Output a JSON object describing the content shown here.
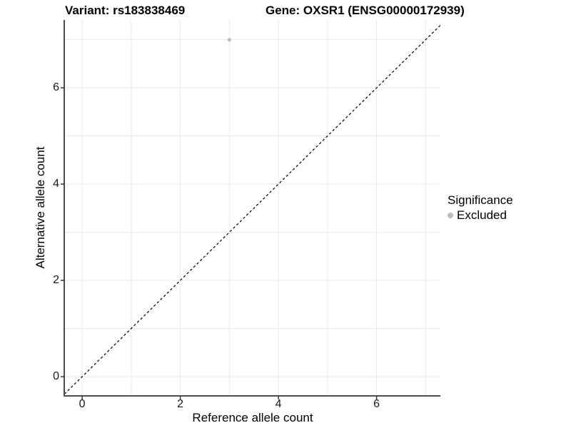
{
  "chart_data": {
    "type": "scatter",
    "title_left": "Variant: rs183838469",
    "title_right": "Gene: OXSR1 (ENSG00000172939)",
    "xlabel": "Reference allele count",
    "ylabel": "Alternative allele count",
    "xlim": [
      -0.365,
      7.3
    ],
    "ylim": [
      -0.4,
      7.41
    ],
    "x_ticks": [
      0,
      2,
      4,
      6
    ],
    "y_ticks": [
      0,
      2,
      4,
      6
    ],
    "grid_x": [
      0,
      1,
      2,
      3,
      4,
      5,
      6,
      7
    ],
    "grid_y": [
      0,
      1,
      2,
      3,
      4,
      5,
      6,
      7
    ],
    "grid": true,
    "series": [
      {
        "name": "Excluded",
        "color": "#bdbdbd",
        "points": [
          {
            "x": 3,
            "y": 7
          }
        ]
      }
    ],
    "reference_line": {
      "type": "identity",
      "slope": 1,
      "intercept": 0,
      "style": "dashed",
      "color": "#000000"
    },
    "legend": {
      "title": "Significance",
      "position": "right",
      "items": [
        {
          "label": "Excluded",
          "color": "#bdbdbd"
        }
      ]
    },
    "colors": {
      "grid": "#e9e9e9",
      "axis_line": "#4d4d4d",
      "tick_mark": "#333333",
      "tick_text": "#1a1a1a",
      "title_text": "#000000"
    }
  }
}
